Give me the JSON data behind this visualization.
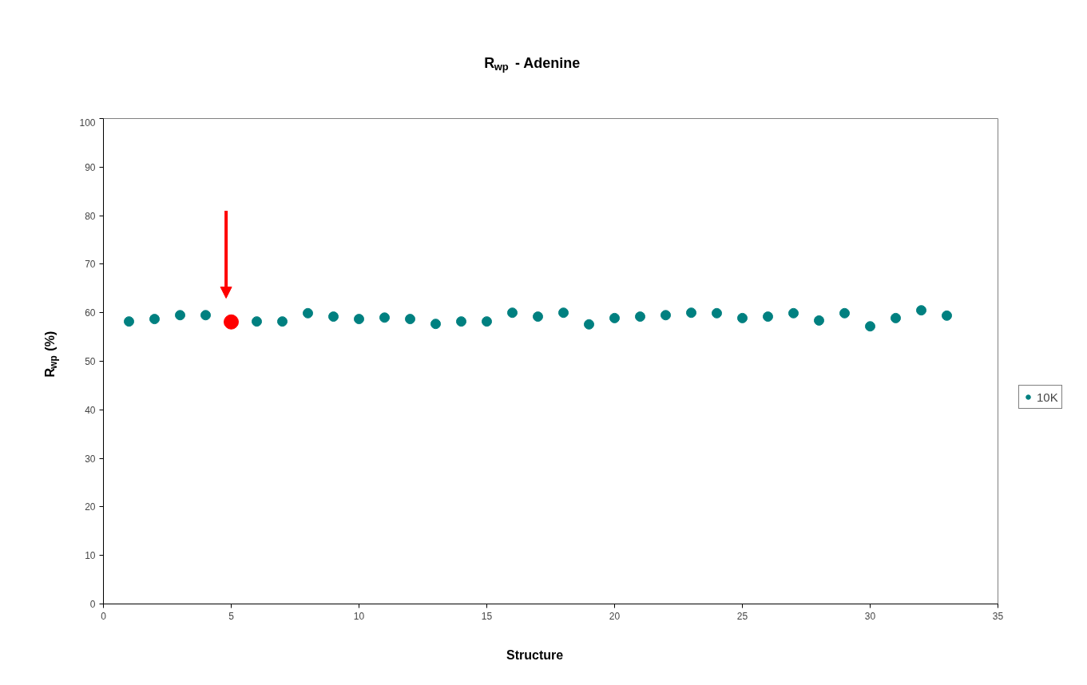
{
  "chart_data": {
    "type": "scatter",
    "title": "R$_{wp}$ - Adenine",
    "xlabel": "Structure",
    "ylabel": "R$_{wp}$ (%)",
    "xlim": [
      0,
      35
    ],
    "xticks": [
      0,
      5,
      10,
      15,
      20,
      25,
      30,
      35
    ],
    "ylim": [
      0,
      100
    ],
    "yticks": [
      0,
      10,
      20,
      30,
      40,
      50,
      60,
      70,
      80,
      90,
      100
    ],
    "grid": false,
    "legend": "right",
    "marker": "circle",
    "series": [
      {
        "name": "10K",
        "color": "#008080",
        "x": [
          1,
          2,
          3,
          4,
          5,
          6,
          7,
          8,
          9,
          10,
          11,
          12,
          13,
          14,
          15,
          16,
          17,
          18,
          19,
          20,
          21,
          22,
          23,
          24,
          25,
          26,
          27,
          28,
          29,
          30,
          31,
          32,
          33
        ],
        "values": [
          58.2,
          58.7,
          59.5,
          59.5,
          null,
          58.2,
          58.2,
          59.9,
          59.2,
          58.7,
          59.0,
          58.7,
          57.7,
          58.2,
          58.2,
          60.0,
          59.2,
          60.0,
          57.6,
          58.9,
          59.2,
          59.5,
          60.0,
          59.9,
          58.9,
          59.2,
          59.9,
          58.4,
          59.9,
          57.2,
          58.9,
          60.5,
          59.4
        ]
      },
      {
        "color": "#ff0000",
        "x": [
          5
        ],
        "values": [
          58.1
        ]
      }
    ]
  }
}
